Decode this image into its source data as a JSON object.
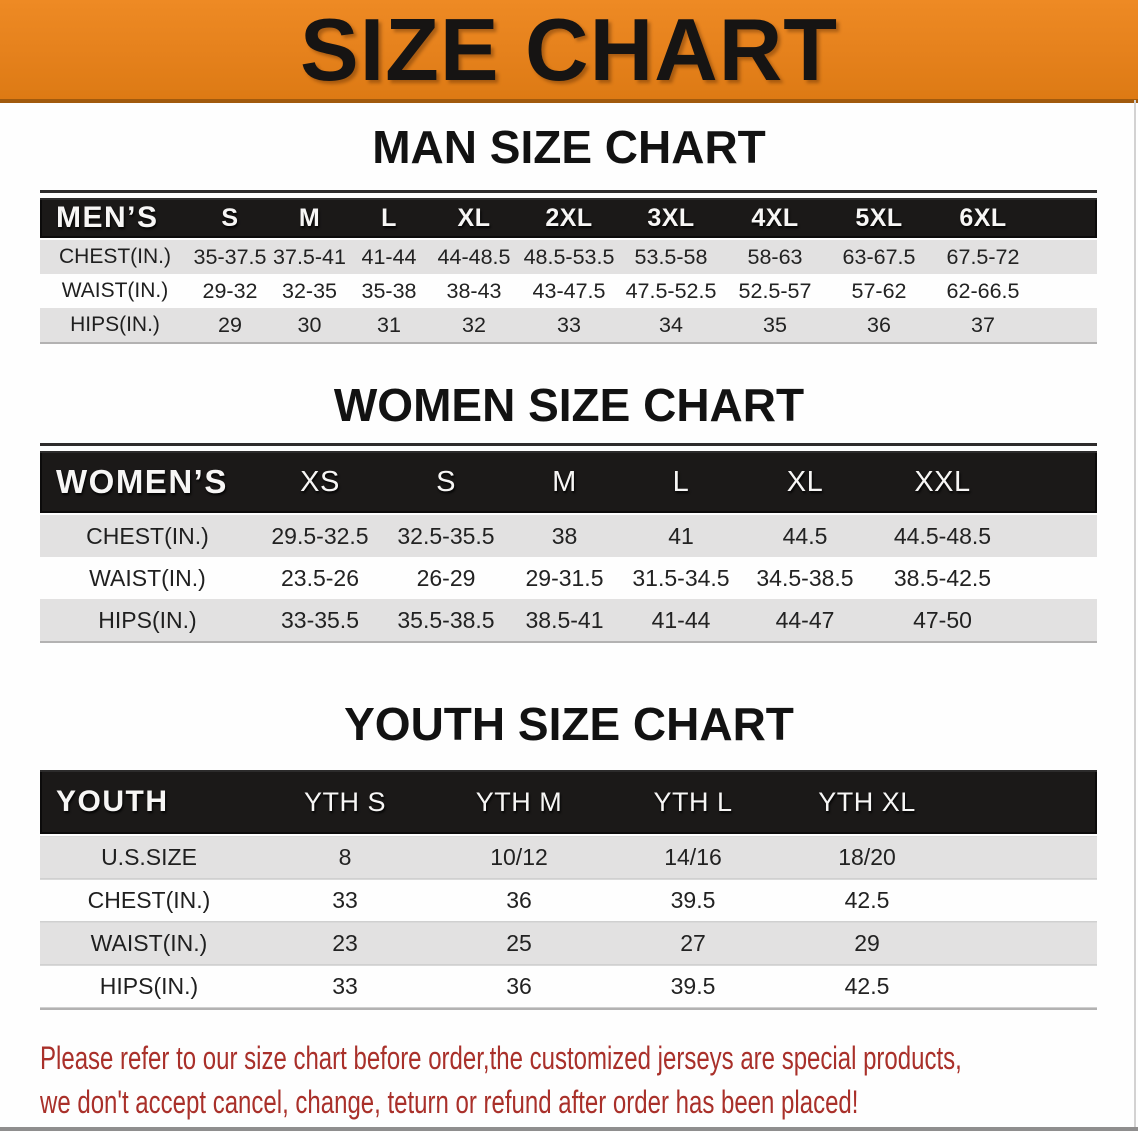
{
  "banner": {
    "title": "SIZE CHART"
  },
  "sections": [
    {
      "heading": "MAN SIZE CHART",
      "table": {
        "corner": "MEN’S",
        "sizes": [
          "S",
          "M",
          "L",
          "XL",
          "2XL",
          "3XL",
          "4XL",
          "5XL",
          "6XL"
        ],
        "rows": [
          {
            "label": "CHEST(IN.)",
            "values": [
              "35-37.5",
              "37.5-41",
              "41-44",
              "44-48.5",
              "48.5-53.5",
              "53.5-58",
              "58-63",
              "63-67.5",
              "67.5-72"
            ]
          },
          {
            "label": "WAIST(IN.)",
            "values": [
              "29-32",
              "32-35",
              "35-38",
              "38-43",
              "43-47.5",
              "47.5-52.5",
              "52.5-57",
              "57-62",
              "62-66.5"
            ]
          },
          {
            "label": "HIPS(IN.)",
            "values": [
              "29",
              "30",
              "31",
              "32",
              "33",
              "34",
              "35",
              "36",
              "37"
            ]
          }
        ]
      }
    },
    {
      "heading": "WOMEN SIZE CHART",
      "table": {
        "corner": "WOMEN’S",
        "sizes": [
          "XS",
          "S",
          "M",
          "L",
          "XL",
          "XXL"
        ],
        "rows": [
          {
            "label": "CHEST(IN.)",
            "values": [
              "29.5-32.5",
              "32.5-35.5",
              "38",
              "41",
              "44.5",
              "44.5-48.5"
            ]
          },
          {
            "label": "WAIST(IN.)",
            "values": [
              "23.5-26",
              "26-29",
              "29-31.5",
              "31.5-34.5",
              "34.5-38.5",
              "38.5-42.5"
            ]
          },
          {
            "label": "HIPS(IN.)",
            "values": [
              "33-35.5",
              "35.5-38.5",
              "38.5-41",
              "41-44",
              "44-47",
              "47-50"
            ]
          }
        ]
      }
    },
    {
      "heading": "YOUTH SIZE CHART",
      "table": {
        "corner": "YOUTH",
        "sizes": [
          "YTH S",
          "YTH M",
          "YTH L",
          "YTH XL"
        ],
        "rows": [
          {
            "label": "U.S.SIZE",
            "values": [
              "8",
              "10/12",
              "14/16",
              "18/20"
            ]
          },
          {
            "label": "CHEST(IN.)",
            "values": [
              "33",
              "36",
              "39.5",
              "42.5"
            ]
          },
          {
            "label": "WAIST(IN.)",
            "values": [
              "23",
              "25",
              "27",
              "29"
            ]
          },
          {
            "label": "HIPS(IN.)",
            "values": [
              "33",
              "36",
              "39.5",
              "42.5"
            ]
          }
        ]
      }
    }
  ],
  "footnote": {
    "line1": "Please refer to our size chart before order,the customized jerseys are special products,",
    "line2": "we don't accept cancel, change, teturn or refund after order has been placed!"
  },
  "colors": {
    "banner_orange": "#E5811C",
    "banner_edge": "#A15A0D",
    "bar_black": "#1B1918",
    "row_gray": "#E2E1E1",
    "row_white": "#FEFEFE",
    "accent_red": "#A9302A"
  },
  "chart_data": [
    {
      "type": "table",
      "title": "MAN SIZE CHART",
      "columns": [
        "MEN’S",
        "S",
        "M",
        "L",
        "XL",
        "2XL",
        "3XL",
        "4XL",
        "5XL",
        "6XL"
      ],
      "rows": [
        [
          "CHEST(IN.)",
          "35-37.5",
          "37.5-41",
          "41-44",
          "44-48.5",
          "48.5-53.5",
          "53.5-58",
          "58-63",
          "63-67.5",
          "67.5-72"
        ],
        [
          "WAIST(IN.)",
          "29-32",
          "32-35",
          "35-38",
          "38-43",
          "43-47.5",
          "47.5-52.5",
          "52.5-57",
          "57-62",
          "62-66.5"
        ],
        [
          "HIPS(IN.)",
          "29",
          "30",
          "31",
          "32",
          "33",
          "34",
          "35",
          "36",
          "37"
        ]
      ]
    },
    {
      "type": "table",
      "title": "WOMEN SIZE CHART",
      "columns": [
        "WOMEN’S",
        "XS",
        "S",
        "M",
        "L",
        "XL",
        "XXL"
      ],
      "rows": [
        [
          "CHEST(IN.)",
          "29.5-32.5",
          "32.5-35.5",
          "38",
          "41",
          "44.5",
          "44.5-48.5"
        ],
        [
          "WAIST(IN.)",
          "23.5-26",
          "26-29",
          "29-31.5",
          "31.5-34.5",
          "34.5-38.5",
          "38.5-42.5"
        ],
        [
          "HIPS(IN.)",
          "33-35.5",
          "35.5-38.5",
          "38.5-41",
          "41-44",
          "44-47",
          "47-50"
        ]
      ]
    },
    {
      "type": "table",
      "title": "YOUTH SIZE CHART",
      "columns": [
        "YOUTH",
        "YTH S",
        "YTH M",
        "YTH L",
        "YTH XL"
      ],
      "rows": [
        [
          "U.S.SIZE",
          "8",
          "10/12",
          "14/16",
          "18/20"
        ],
        [
          "CHEST(IN.)",
          "33",
          "36",
          "39.5",
          "42.5"
        ],
        [
          "WAIST(IN.)",
          "23",
          "25",
          "27",
          "29"
        ],
        [
          "HIPS(IN.)",
          "33",
          "36",
          "39.5",
          "42.5"
        ]
      ]
    }
  ]
}
